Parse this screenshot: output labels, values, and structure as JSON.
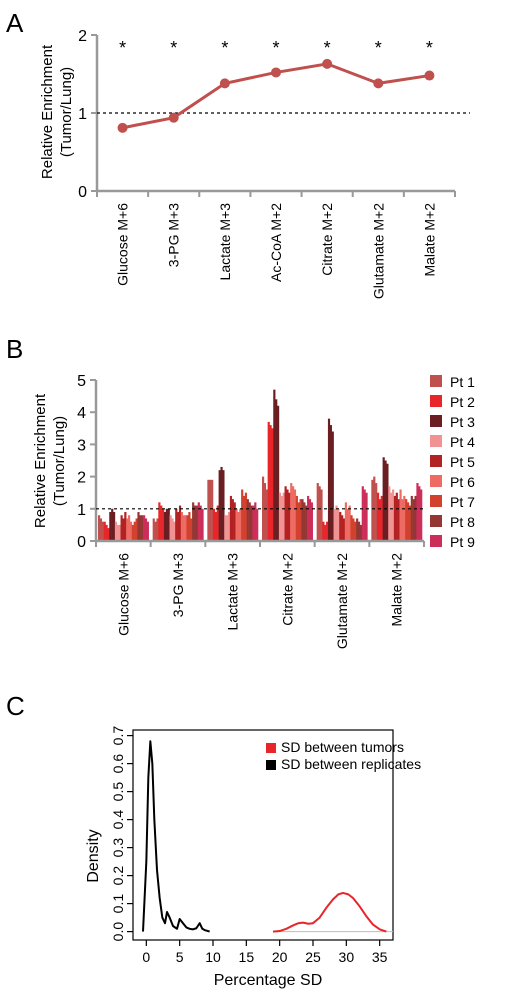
{
  "panels": {
    "A": "A",
    "B": "B",
    "C": "C"
  },
  "chart_data": [
    {
      "type": "line",
      "panel": "A",
      "title": "",
      "ylabel_line1": "Relative Enrichment",
      "ylabel_line2": "(Tumor/Lung)",
      "ylim": [
        0,
        2
      ],
      "yticks": [
        0,
        1,
        2
      ],
      "reference_line": 1,
      "categories": [
        "Glucose M+6",
        "3-PG M+3",
        "Lactate M+3",
        "Ac-CoA M+2",
        "Citrate M+2",
        "Glutamate M+2",
        "Malate M+2"
      ],
      "values": [
        0.81,
        0.94,
        1.38,
        1.52,
        1.63,
        1.38,
        1.48
      ],
      "annotations": [
        "*",
        "*",
        "*",
        "*",
        "*",
        "*",
        "*"
      ],
      "colors": {
        "line": "#c0504d",
        "axis": "#999999"
      }
    },
    {
      "type": "bar",
      "panel": "B",
      "title": "",
      "ylabel_line1": "Relative Enrichment",
      "ylabel_line2": "(Tumor/Lung)",
      "ylim": [
        0,
        5
      ],
      "yticks": [
        0,
        1,
        2,
        3,
        4,
        5
      ],
      "reference_line": 1,
      "categories": [
        "Glucose M+6",
        "3-PG M+3",
        "Lactate M+3",
        "Citrate M+2",
        "Glutamate M+2",
        "Malate M+2"
      ],
      "series": [
        {
          "name": "Pt 1",
          "color": "#c0504d",
          "values": [
            [
              0.8,
              0.7,
              0.6
            ],
            [
              0.7,
              0.6,
              0.7
            ],
            [
              1.9,
              1.9,
              1.9
            ],
            [
              2.0,
              1.8,
              1.6
            ],
            [
              1.8,
              1.7,
              1.6
            ],
            [
              1.9,
              2.0,
              1.8
            ]
          ]
        },
        {
          "name": "Pt 2",
          "color": "#e8262a",
          "values": [
            [
              0.6,
              0.5,
              0.4
            ],
            [
              1.2,
              1.1,
              1.0
            ],
            [
              1.0,
              0.9,
              1.1
            ],
            [
              3.7,
              3.6,
              3.5
            ],
            [
              0.6,
              0.5,
              0.6
            ],
            [
              1.5,
              1.3,
              1.4
            ]
          ]
        },
        {
          "name": "Pt 3",
          "color": "#6a1e22",
          "values": [
            [
              0.9,
              1.0,
              0.9
            ],
            [
              0.9,
              1.0,
              1.0
            ],
            [
              2.2,
              2.3,
              2.2
            ],
            [
              4.7,
              4.4,
              4.2
            ],
            [
              3.8,
              3.6,
              3.4
            ],
            [
              2.6,
              2.5,
              2.4
            ]
          ]
        },
        {
          "name": "Pt 4",
          "color": "#f19393",
          "values": [
            [
              0.6,
              0.5,
              0.5
            ],
            [
              0.8,
              0.7,
              0.6
            ],
            [
              0.8,
              0.8,
              0.9
            ],
            [
              1.5,
              1.4,
              1.5
            ],
            [
              1.0,
              1.1,
              1.0
            ],
            [
              1.7,
              1.5,
              1.6
            ]
          ]
        },
        {
          "name": "Pt 5",
          "color": "#b22222",
          "values": [
            [
              0.8,
              0.7,
              0.9
            ],
            [
              1.0,
              0.9,
              1.1
            ],
            [
              1.4,
              1.3,
              1.2
            ],
            [
              1.7,
              1.6,
              1.5
            ],
            [
              0.9,
              0.8,
              0.7
            ],
            [
              1.4,
              1.5,
              1.3
            ]
          ]
        },
        {
          "name": "Pt 6",
          "color": "#ee6b63",
          "values": [
            [
              0.7,
              0.8,
              0.6
            ],
            [
              0.9,
              0.8,
              0.8
            ],
            [
              1.0,
              0.9,
              1.0
            ],
            [
              1.8,
              1.7,
              1.6
            ],
            [
              1.2,
              1.0,
              1.1
            ],
            [
              1.6,
              1.3,
              1.4
            ]
          ]
        },
        {
          "name": "Pt 7",
          "color": "#d2402e",
          "values": [
            [
              0.5,
              0.6,
              0.7
            ],
            [
              0.8,
              0.9,
              0.7
            ],
            [
              1.6,
              1.4,
              1.5
            ],
            [
              1.4,
              1.2,
              1.3
            ],
            [
              0.8,
              0.7,
              0.6
            ],
            [
              1.3,
              1.2,
              1.1
            ]
          ]
        },
        {
          "name": "Pt 8",
          "color": "#943634",
          "values": [
            [
              0.9,
              0.8,
              0.8
            ],
            [
              1.2,
              1.1,
              1.1
            ],
            [
              1.3,
              1.2,
              1.1
            ],
            [
              1.3,
              1.2,
              1.1
            ],
            [
              0.7,
              0.6,
              0.5
            ],
            [
              1.4,
              1.3,
              1.4
            ]
          ]
        },
        {
          "name": "Pt 9",
          "color": "#cc2e5a",
          "values": [
            [
              0.8,
              0.7,
              0.6
            ],
            [
              1.2,
              1.1,
              1.0
            ],
            [
              1.1,
              1.2,
              1.0
            ],
            [
              1.4,
              1.3,
              1.2
            ],
            [
              1.7,
              1.6,
              1.5
            ],
            [
              1.8,
              1.7,
              1.6
            ]
          ]
        }
      ]
    },
    {
      "type": "line",
      "panel": "C",
      "title": "",
      "xlabel": "Percentage SD",
      "ylabel": "Density",
      "xlim": [
        -2,
        37
      ],
      "ylim": [
        -0.03,
        0.72
      ],
      "xticks": [
        0,
        5,
        10,
        15,
        20,
        25,
        30,
        35
      ],
      "yticks": [
        0.0,
        0.1,
        0.2,
        0.3,
        0.4,
        0.5,
        0.6,
        0.7
      ],
      "ytick_labels": [
        "0.0",
        "0.1",
        "0.2",
        "0.3",
        "0.4",
        "0.5",
        "0.6",
        "0.7"
      ],
      "legend_position": "top-right",
      "series": [
        {
          "name": "SD between tumors",
          "color": "#e8262a",
          "x": [
            19.0,
            20.0,
            21.0,
            22.0,
            22.8,
            23.5,
            24.3,
            25.0,
            26.0,
            27.0,
            28.0,
            28.8,
            29.5,
            30.3,
            31.0,
            32.0,
            33.0,
            34.0,
            35.0,
            36.0
          ],
          "y": [
            0.0,
            0.002,
            0.01,
            0.022,
            0.03,
            0.032,
            0.028,
            0.03,
            0.05,
            0.085,
            0.115,
            0.133,
            0.138,
            0.133,
            0.12,
            0.09,
            0.055,
            0.025,
            0.008,
            0.0
          ]
        },
        {
          "name": "SD between replicates",
          "color": "#000000",
          "x": [
            -0.5,
            0.0,
            0.3,
            0.6,
            0.9,
            1.2,
            1.6,
            2.0,
            2.4,
            2.8,
            3.1,
            3.5,
            4.0,
            4.6,
            5.0,
            5.5,
            6.0,
            6.5,
            7.0,
            7.5,
            8.0,
            8.4,
            8.8,
            9.5
          ],
          "y": [
            0.0,
            0.25,
            0.55,
            0.68,
            0.6,
            0.4,
            0.22,
            0.12,
            0.05,
            0.03,
            0.07,
            0.05,
            0.02,
            0.01,
            0.045,
            0.03,
            0.015,
            0.01,
            0.008,
            0.012,
            0.03,
            0.01,
            0.005,
            0.0
          ]
        }
      ]
    }
  ]
}
